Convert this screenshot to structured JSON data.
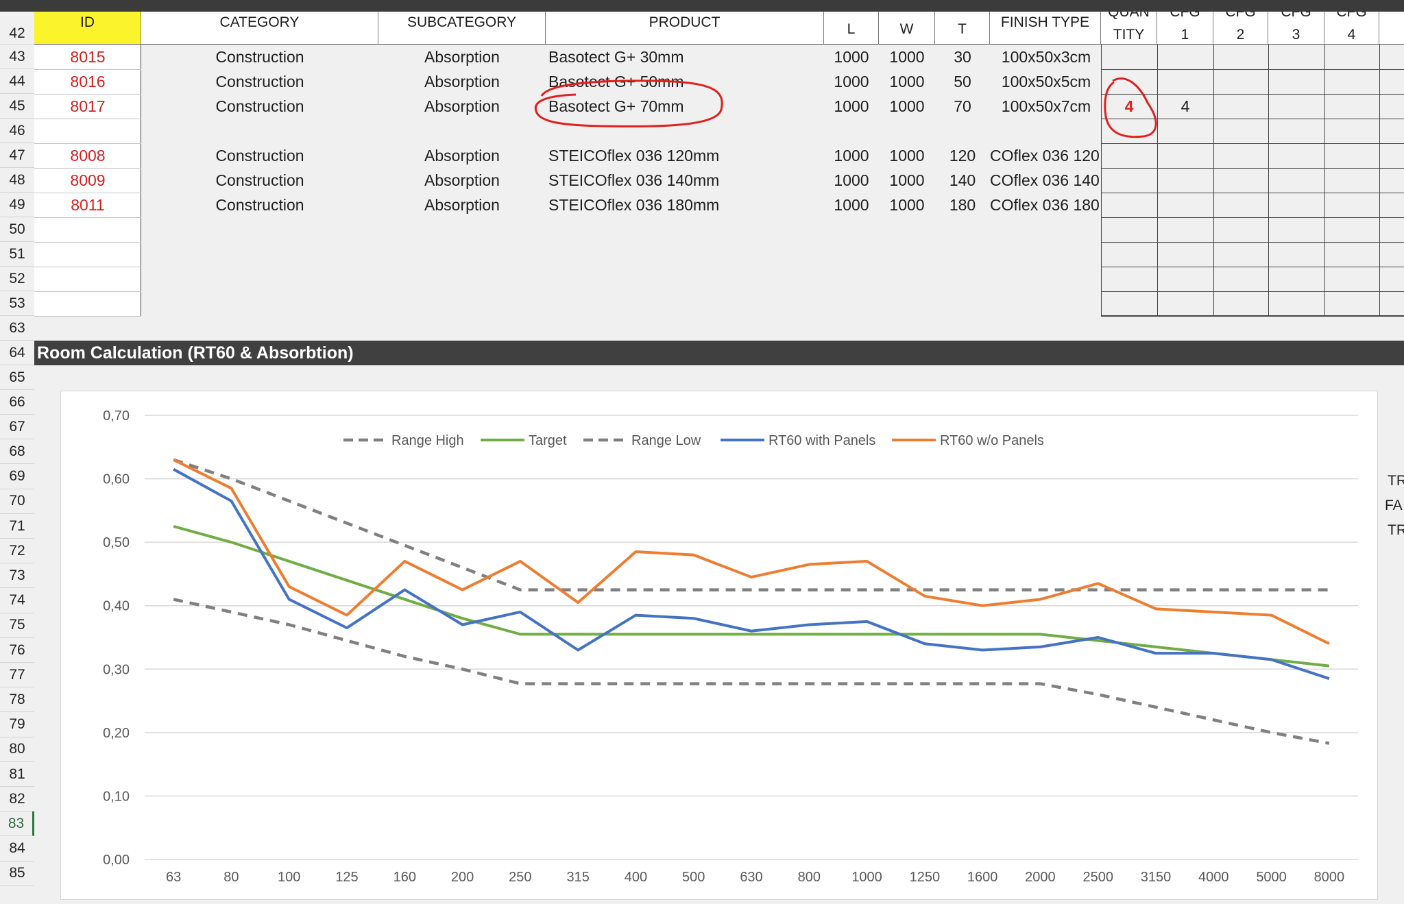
{
  "header": {
    "id": "ID",
    "category": "CATEGORY",
    "subcategory": "SUBCATEGORY",
    "product": "PRODUCT",
    "l": "L",
    "w": "W",
    "t": "T",
    "finish_type": "FINISH TYPE",
    "quantity_top": "QUAN",
    "quantity": "TITY",
    "cfg_top": "CFG",
    "cfg1": "1",
    "cfg2": "2",
    "cfg3": "3",
    "cfg4": "4"
  },
  "row_numbers": [
    "42",
    "43",
    "44",
    "45",
    "46",
    "47",
    "48",
    "49",
    "50",
    "51",
    "52",
    "53",
    "63",
    "64",
    "65",
    "66",
    "67",
    "68",
    "69",
    "70",
    "71",
    "72",
    "73",
    "74",
    "75",
    "76",
    "77",
    "78",
    "79",
    "80",
    "81",
    "82",
    "83",
    "84",
    "85"
  ],
  "rows": [
    {
      "row": "43",
      "id": "8015",
      "category": "Construction",
      "subcategory": "Absorption",
      "product": "Basotect G+ 30mm",
      "l": "1000",
      "w": "1000",
      "t": "30",
      "finish": "100x50x3cm"
    },
    {
      "row": "44",
      "id": "8016",
      "category": "Construction",
      "subcategory": "Absorption",
      "product": "Basotect G+ 50mm",
      "l": "1000",
      "w": "1000",
      "t": "50",
      "finish": "100x50x5cm"
    },
    {
      "row": "45",
      "id": "8017",
      "category": "Construction",
      "subcategory": "Absorption",
      "product": "Basotect G+ 70mm",
      "l": "1000",
      "w": "1000",
      "t": "70",
      "finish": "100x50x7cm",
      "quantity": "4",
      "cfg1": "4"
    },
    {
      "row": "47",
      "id": "8008",
      "category": "Construction",
      "subcategory": "Absorption",
      "product": "STEICOflex 036 120mm",
      "l": "1000",
      "w": "1000",
      "t": "120",
      "finish": "COflex 036 120"
    },
    {
      "row": "48",
      "id": "8009",
      "category": "Construction",
      "subcategory": "Absorption",
      "product": "STEICOflex 036 140mm",
      "l": "1000",
      "w": "1000",
      "t": "140",
      "finish": "COflex 036 140"
    },
    {
      "row": "49",
      "id": "8011",
      "category": "Construction",
      "subcategory": "Absorption",
      "product": "STEICOflex 036 180mm",
      "l": "1000",
      "w": "1000",
      "t": "180",
      "finish": "COflex 036 180"
    }
  ],
  "section_title": "Room Calculation (RT60 & Absorbtion)",
  "side_labels": [
    "TR",
    "FA",
    "TR"
  ],
  "colors": {
    "id_red": "#d42020",
    "id_header_yellow": "#fbf42a",
    "annotation_red": "#e0201e",
    "range_gray": "#808080",
    "target_green": "#70ad47",
    "with_panels_blue": "#4472c4",
    "without_panels_orange": "#ed7d31"
  },
  "chart_data": {
    "type": "line",
    "title": "",
    "xlabel": "",
    "ylabel": "",
    "ylim": [
      0,
      0.7
    ],
    "y_ticks": [
      "0,00",
      "0,10",
      "0,20",
      "0,30",
      "0,40",
      "0,50",
      "0,60",
      "0,70"
    ],
    "grid": true,
    "legend_position": "top",
    "categories": [
      "63",
      "80",
      "100",
      "125",
      "160",
      "200",
      "250",
      "315",
      "400",
      "500",
      "630",
      "800",
      "1000",
      "1250",
      "1600",
      "2000",
      "2500",
      "3150",
      "4000",
      "5000",
      "8000"
    ],
    "series": [
      {
        "name": "Range High",
        "style": "dashed",
        "color": "#808080",
        "values": [
          0.63,
          0.6,
          0.565,
          0.53,
          0.495,
          0.46,
          0.425,
          0.425,
          0.425,
          0.425,
          0.425,
          0.425,
          0.425,
          0.425,
          0.425,
          0.425,
          0.425,
          0.425,
          0.425,
          0.425,
          0.425
        ]
      },
      {
        "name": "Target",
        "style": "solid",
        "color": "#70ad47",
        "values": [
          0.525,
          0.5,
          0.47,
          0.44,
          0.41,
          0.38,
          0.355,
          0.355,
          0.355,
          0.355,
          0.355,
          0.355,
          0.355,
          0.355,
          0.355,
          0.355,
          0.345,
          0.335,
          0.325,
          0.315,
          0.305
        ]
      },
      {
        "name": "Range Low",
        "style": "dashed",
        "color": "#808080",
        "values": [
          0.41,
          0.39,
          0.37,
          0.345,
          0.32,
          0.3,
          0.277,
          0.277,
          0.277,
          0.277,
          0.277,
          0.277,
          0.277,
          0.277,
          0.277,
          0.277,
          0.26,
          0.24,
          0.22,
          0.2,
          0.183
        ]
      },
      {
        "name": "RT60 with Panels",
        "style": "solid",
        "color": "#4472c4",
        "values": [
          0.615,
          0.565,
          0.41,
          0.365,
          0.425,
          0.37,
          0.39,
          0.33,
          0.385,
          0.38,
          0.36,
          0.37,
          0.375,
          0.34,
          0.33,
          0.335,
          0.35,
          0.325,
          0.325,
          0.315,
          0.285
        ]
      },
      {
        "name": "RT60 w/o Panels",
        "style": "solid",
        "color": "#ed7d31",
        "values": [
          0.63,
          0.585,
          0.43,
          0.385,
          0.47,
          0.425,
          0.47,
          0.405,
          0.485,
          0.48,
          0.445,
          0.465,
          0.47,
          0.415,
          0.4,
          0.41,
          0.435,
          0.395,
          0.39,
          0.385,
          0.34
        ]
      }
    ]
  }
}
